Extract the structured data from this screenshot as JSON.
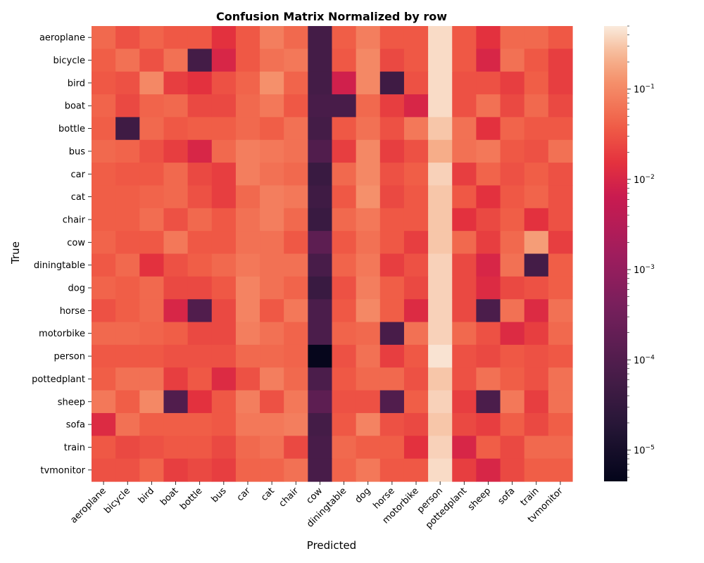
{
  "chart_data": {
    "type": "heatmap",
    "title": "Confusion Matrix Normalized by row",
    "xlabel": "Predicted",
    "ylabel": "True",
    "x_categories": [
      "aeroplane",
      "bicycle",
      "bird",
      "boat",
      "bottle",
      "bus",
      "car",
      "cat",
      "chair",
      "cow",
      "diningtable",
      "dog",
      "horse",
      "motorbike",
      "person",
      "pottedplant",
      "sheep",
      "sofa",
      "train",
      "tvmonitor"
    ],
    "y_categories": [
      "aeroplane",
      "bicycle",
      "bird",
      "boat",
      "bottle",
      "bus",
      "car",
      "cat",
      "chair",
      "cow",
      "diningtable",
      "dog",
      "horse",
      "motorbike",
      "person",
      "pottedplant",
      "sheep",
      "sofa",
      "train",
      "tvmonitor"
    ],
    "color_scale": "log",
    "colormap": "rocket",
    "vmin": 4.5e-06,
    "vmax": 0.5,
    "colorbar_ticks": [
      {
        "value": 1e-05,
        "base": "10",
        "exp": "−5"
      },
      {
        "value": 0.0001,
        "base": "10",
        "exp": "−4"
      },
      {
        "value": 0.001,
        "base": "10",
        "exp": "−3"
      },
      {
        "value": 0.01,
        "base": "10",
        "exp": "−2"
      },
      {
        "value": 0.1,
        "base": "10",
        "exp": "−1"
      }
    ],
    "values": [
      [
        0.05,
        0.03,
        0.045,
        0.035,
        0.035,
        0.015,
        0.035,
        0.08,
        0.05,
        6e-05,
        0.04,
        0.08,
        0.035,
        0.035,
        0.4,
        0.035,
        0.015,
        0.05,
        0.05,
        0.035
      ],
      [
        0.04,
        0.06,
        0.03,
        0.06,
        6e-05,
        0.01,
        0.035,
        0.06,
        0.07,
        6e-05,
        0.035,
        0.1,
        0.025,
        0.035,
        0.4,
        0.035,
        0.01,
        0.06,
        0.035,
        0.02
      ],
      [
        0.035,
        0.03,
        0.1,
        0.02,
        0.015,
        0.03,
        0.045,
        0.12,
        0.045,
        6e-05,
        0.008,
        0.1,
        5e-05,
        0.03,
        0.4,
        0.03,
        0.03,
        0.02,
        0.04,
        0.02
      ],
      [
        0.045,
        0.025,
        0.045,
        0.05,
        0.025,
        0.025,
        0.05,
        0.07,
        0.035,
        7e-05,
        7e-05,
        0.05,
        0.02,
        0.01,
        0.4,
        0.03,
        0.06,
        0.025,
        0.05,
        0.025
      ],
      [
        0.04,
        5e-05,
        0.05,
        0.035,
        0.04,
        0.04,
        0.05,
        0.04,
        0.06,
        6e-05,
        0.035,
        0.06,
        0.03,
        0.07,
        0.3,
        0.06,
        0.015,
        0.045,
        0.035,
        0.035
      ],
      [
        0.05,
        0.045,
        0.03,
        0.02,
        0.01,
        0.05,
        0.08,
        0.07,
        0.06,
        0.0001,
        0.02,
        0.1,
        0.02,
        0.03,
        0.2,
        0.06,
        0.07,
        0.035,
        0.03,
        0.06
      ],
      [
        0.04,
        0.035,
        0.035,
        0.05,
        0.025,
        0.02,
        0.08,
        0.06,
        0.05,
        4e-05,
        0.05,
        0.1,
        0.03,
        0.04,
        0.35,
        0.02,
        0.045,
        0.03,
        0.04,
        0.03
      ],
      [
        0.04,
        0.04,
        0.045,
        0.05,
        0.03,
        0.02,
        0.05,
        0.08,
        0.07,
        5e-05,
        0.035,
        0.12,
        0.025,
        0.035,
        0.3,
        0.035,
        0.015,
        0.035,
        0.045,
        0.03
      ],
      [
        0.04,
        0.04,
        0.055,
        0.03,
        0.05,
        0.035,
        0.06,
        0.08,
        0.05,
        4e-05,
        0.05,
        0.07,
        0.035,
        0.035,
        0.3,
        0.015,
        0.025,
        0.04,
        0.015,
        0.03
      ],
      [
        0.045,
        0.035,
        0.035,
        0.07,
        0.035,
        0.035,
        0.06,
        0.06,
        0.035,
        0.00015,
        0.035,
        0.06,
        0.035,
        0.02,
        0.3,
        0.05,
        0.02,
        0.05,
        0.15,
        0.02
      ],
      [
        0.035,
        0.05,
        0.015,
        0.03,
        0.04,
        0.05,
        0.07,
        0.06,
        0.06,
        7e-05,
        0.045,
        0.07,
        0.02,
        0.03,
        0.35,
        0.025,
        0.01,
        0.06,
        6e-05,
        0.04
      ],
      [
        0.045,
        0.04,
        0.05,
        0.025,
        0.025,
        0.035,
        0.09,
        0.06,
        0.045,
        4e-05,
        0.03,
        0.08,
        0.04,
        0.025,
        0.35,
        0.025,
        0.012,
        0.025,
        0.03,
        0.04
      ],
      [
        0.03,
        0.04,
        0.05,
        0.01,
        0.0001,
        0.025,
        0.09,
        0.035,
        0.07,
        8e-05,
        0.035,
        0.1,
        0.04,
        0.012,
        0.35,
        0.025,
        8e-05,
        0.06,
        0.012,
        0.06
      ],
      [
        0.05,
        0.05,
        0.045,
        0.04,
        0.025,
        0.025,
        0.08,
        0.06,
        0.045,
        8e-05,
        0.045,
        0.05,
        7e-05,
        0.06,
        0.35,
        0.05,
        0.03,
        0.012,
        0.02,
        0.05
      ],
      [
        0.035,
        0.035,
        0.035,
        0.03,
        0.03,
        0.03,
        0.05,
        0.05,
        0.045,
        5e-06,
        0.03,
        0.06,
        0.02,
        0.035,
        0.45,
        0.03,
        0.025,
        0.035,
        0.03,
        0.035
      ],
      [
        0.04,
        0.06,
        0.06,
        0.02,
        0.035,
        0.012,
        0.03,
        0.08,
        0.05,
        8e-05,
        0.035,
        0.05,
        0.05,
        0.03,
        0.3,
        0.03,
        0.06,
        0.04,
        0.03,
        0.06
      ],
      [
        0.07,
        0.04,
        0.1,
        0.0001,
        0.015,
        0.035,
        0.08,
        0.03,
        0.07,
        0.00015,
        0.03,
        0.03,
        0.0001,
        0.04,
        0.35,
        0.02,
        8e-05,
        0.07,
        0.02,
        0.06
      ],
      [
        0.012,
        0.06,
        0.04,
        0.04,
        0.04,
        0.035,
        0.07,
        0.07,
        0.08,
        6e-05,
        0.035,
        0.09,
        0.03,
        0.025,
        0.3,
        0.025,
        0.02,
        0.04,
        0.025,
        0.04
      ],
      [
        0.035,
        0.025,
        0.03,
        0.035,
        0.035,
        0.025,
        0.05,
        0.06,
        0.025,
        7e-05,
        0.05,
        0.04,
        0.04,
        0.015,
        0.35,
        0.01,
        0.04,
        0.025,
        0.05,
        0.05
      ],
      [
        0.03,
        0.03,
        0.045,
        0.02,
        0.025,
        0.02,
        0.045,
        0.045,
        0.06,
        7e-05,
        0.045,
        0.07,
        0.035,
        0.035,
        0.4,
        0.02,
        0.01,
        0.025,
        0.04,
        0.04
      ]
    ]
  }
}
